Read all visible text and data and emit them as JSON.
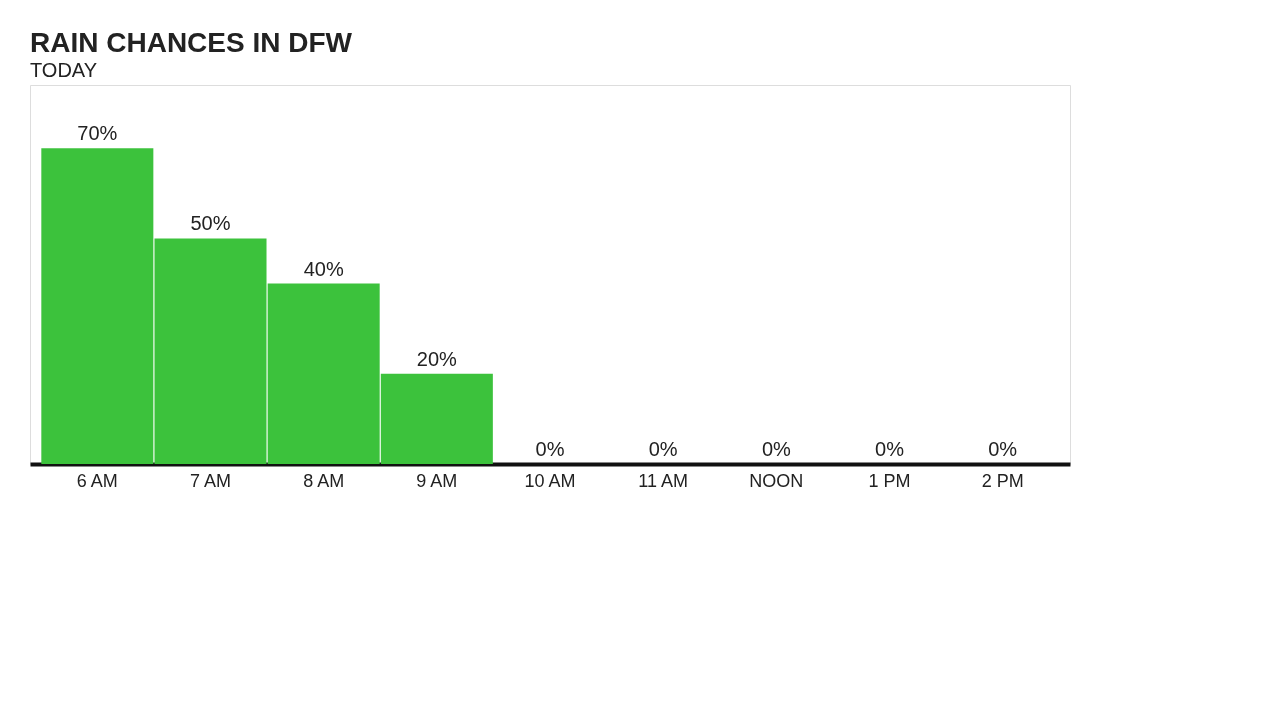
{
  "chart_data": {
    "type": "bar",
    "title": "RAIN CHANCES IN DFW",
    "subtitle": "TODAY",
    "categories": [
      "6 AM",
      "7 AM",
      "8 AM",
      "9 AM",
      "10 AM",
      "11 AM",
      "NOON",
      "1 PM",
      "2 PM"
    ],
    "values": [
      70,
      50,
      40,
      20,
      0,
      0,
      0,
      0,
      0
    ],
    "value_labels": [
      "70%",
      "50%",
      "40%",
      "20%",
      "0%",
      "0%",
      "0%",
      "0%",
      "0%"
    ],
    "color": "#3cc23c",
    "tick_labels": "x",
    "grid": false
  }
}
